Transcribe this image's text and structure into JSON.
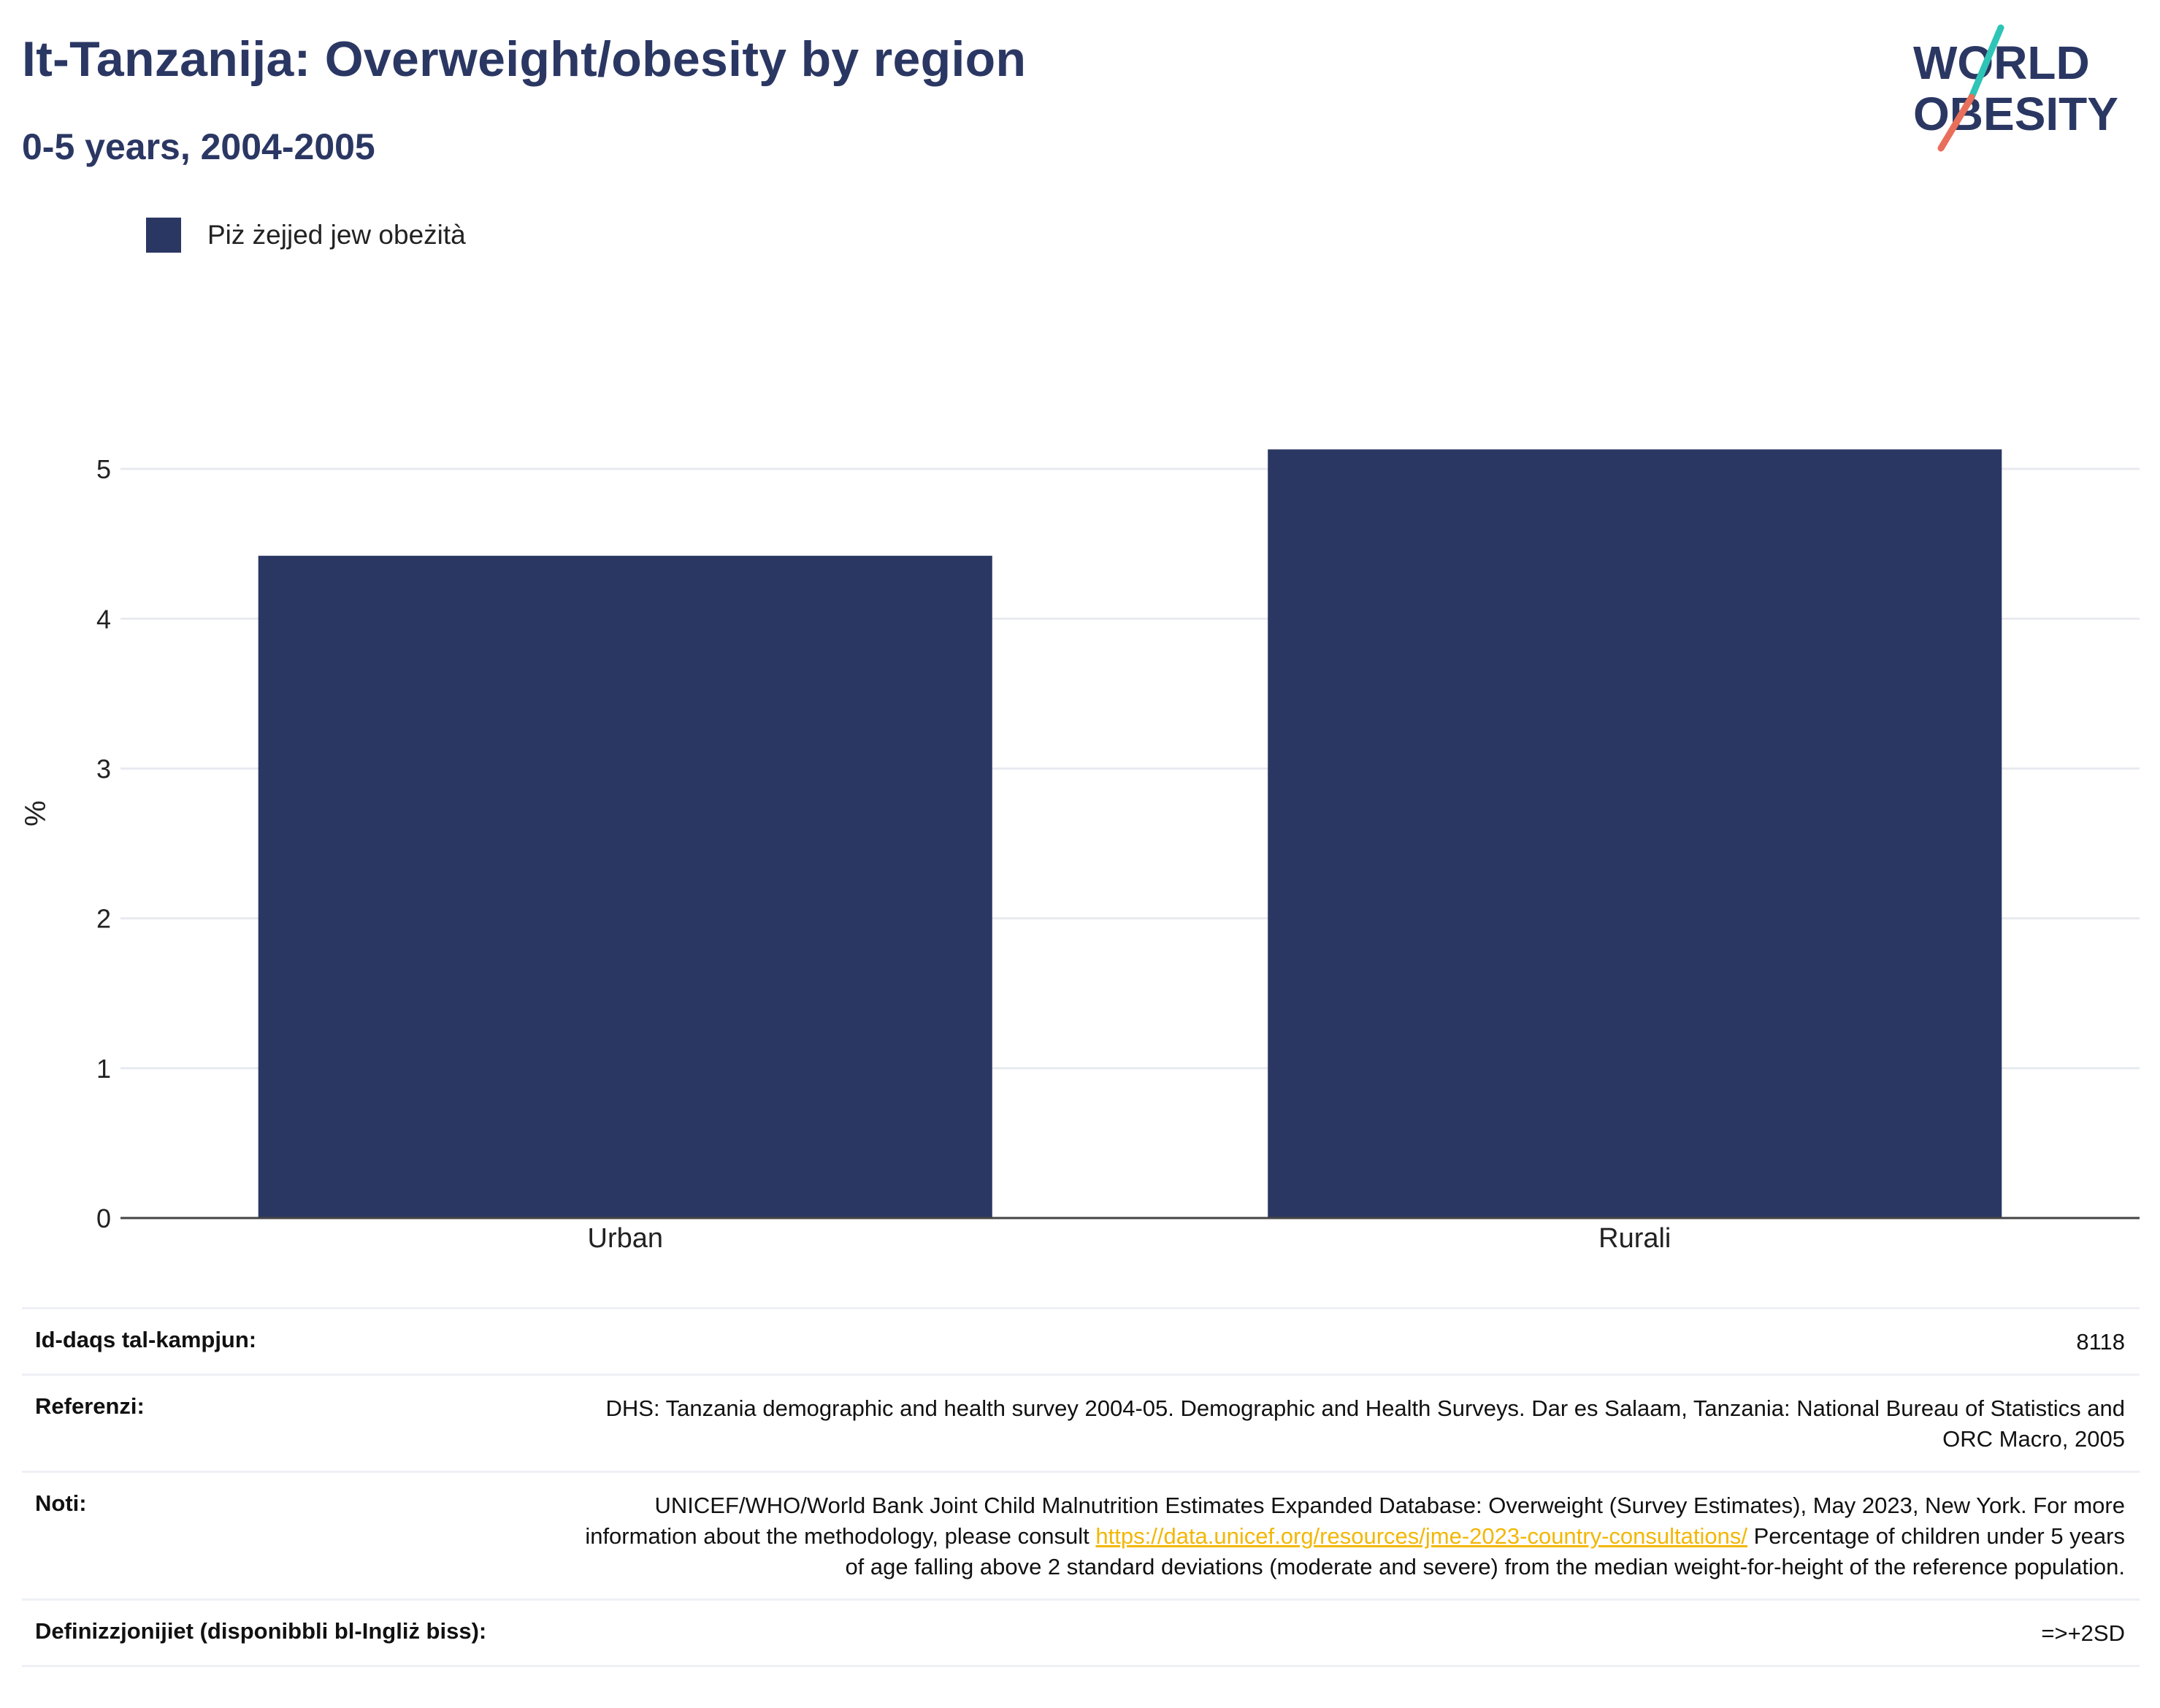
{
  "header": {
    "title": "It-Tanzanija: Overweight/obesity by region",
    "subtitle": "0-5 years, 2004-2005"
  },
  "logo": {
    "line1": "WORLD",
    "line2": "OBESITY",
    "accent_teal": "#2ec4b6",
    "accent_coral": "#e8705a"
  },
  "legend": {
    "label": "Piż żejjed jew obeżità",
    "color": "#2b3763"
  },
  "chart_data": {
    "type": "bar",
    "categories": [
      "Urban",
      "Rurali"
    ],
    "series": [
      {
        "name": "Piż żejjed jew obeżità",
        "values": [
          4.42,
          5.13
        ],
        "color": "#2b3763"
      }
    ],
    "ylabel": "%",
    "xlabel": "",
    "ylim": [
      0,
      5.4
    ],
    "yticks": [
      0,
      1,
      2,
      3,
      4,
      5
    ],
    "grid": true,
    "legend_position": "top-left"
  },
  "info": {
    "sample_label": "Id-daqs tal-kampjun:",
    "sample_value": "8118",
    "references_label": "Referenzi:",
    "references_value": "DHS: Tanzania demographic and health survey 2004-05. Demographic and Health Surveys. Dar es Salaam, Tanzania: National Bureau of Statistics and ORC Macro, 2005",
    "notes_label": "Noti:",
    "notes_text_1": "UNICEF/WHO/World Bank Joint Child Malnutrition Estimates Expanded Database: Overweight (Survey Estimates), May 2023, New York. For more information about the methodology, please consult",
    "notes_link": "https://data.unicef.org/resources/jme-2023-country-consultations/",
    "notes_text_2": "Percentage of children under 5 years of age falling above 2 standard deviations (moderate and severe) from the median weight-for-height of the reference population.",
    "definitions_label": "Definizzjonijiet (disponibbli bl-Ingliż biss):",
    "definitions_value": "=>+2SD"
  }
}
